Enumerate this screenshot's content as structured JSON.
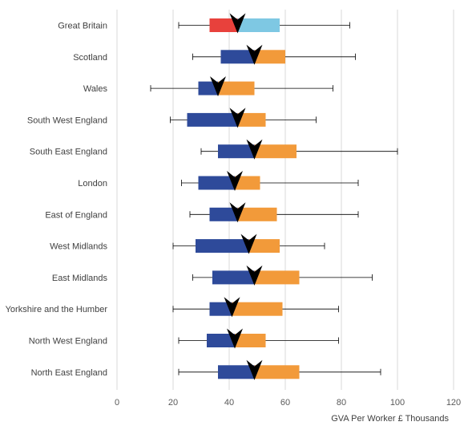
{
  "chart_data": {
    "type": "box",
    "title": "",
    "xlabel": "GVA Per Worker £ Thousands",
    "ylabel": "",
    "xlim": [
      0,
      120
    ],
    "xticks": [
      0,
      20,
      40,
      60,
      80,
      100,
      120
    ],
    "grid": true,
    "categories": [
      "Great Britain",
      "Scotland",
      "Wales",
      "South West England",
      "South East England",
      "London",
      "East of England",
      "West Midlands",
      "East Midlands",
      "Yorkshire and the Humber",
      "North West England",
      "North East England"
    ],
    "series": [
      {
        "values": [
          {
            "min": 22,
            "q1": 33,
            "median": 43,
            "q3": 58,
            "max": 83
          },
          {
            "min": 27,
            "q1": 37,
            "median": 49,
            "q3": 60,
            "max": 85
          },
          {
            "min": 12,
            "q1": 29,
            "median": 36,
            "q3": 49,
            "max": 77
          },
          {
            "min": 19,
            "q1": 25,
            "median": 43,
            "q3": 53,
            "max": 71
          },
          {
            "min": 30,
            "q1": 36,
            "median": 49,
            "q3": 64,
            "max": 100
          },
          {
            "min": 23,
            "q1": 29,
            "median": 42,
            "q3": 51,
            "max": 86
          },
          {
            "min": 26,
            "q1": 33,
            "median": 43,
            "q3": 57,
            "max": 86
          },
          {
            "min": 20,
            "q1": 28,
            "median": 47,
            "q3": 58,
            "max": 74
          },
          {
            "min": 27,
            "q1": 34,
            "median": 49,
            "q3": 65,
            "max": 91
          },
          {
            "min": 20,
            "q1": 33,
            "median": 41,
            "q3": 59,
            "max": 79
          },
          {
            "min": 22,
            "q1": 32,
            "median": 42,
            "q3": 53,
            "max": 79
          },
          {
            "min": 22,
            "q1": 36,
            "median": 49,
            "q3": 65,
            "max": 94
          }
        ]
      }
    ],
    "colors": {
      "lower_box": "#2e4a9a",
      "upper_box": "#f29a3a",
      "gb_lower_box": "#e8413c",
      "gb_upper_box": "#7ec8e3",
      "median_marker": "#000000",
      "whisker": "#000000",
      "grid": "#d9d9d9"
    }
  }
}
